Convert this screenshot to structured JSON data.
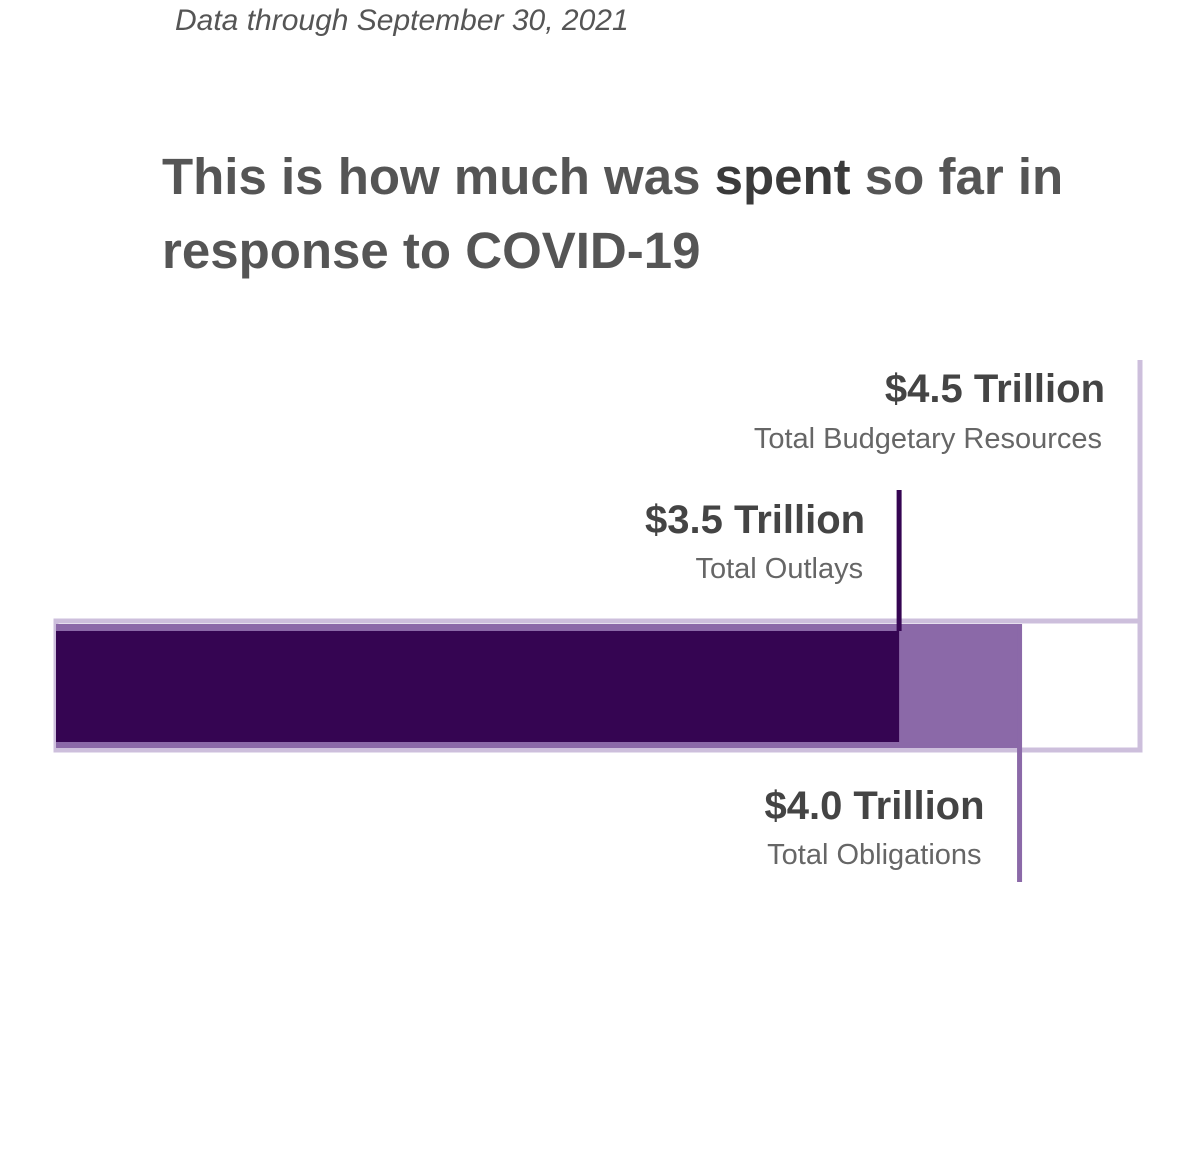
{
  "subtitle": "Data through September 30, 2021",
  "headline": {
    "before": "This is how much was ",
    "emphasis": "spent",
    "after": " so far in response to COVID-19"
  },
  "colors": {
    "budgetary_resources": "#cdbfdc",
    "obligations": "#8b69a8",
    "outlays": "#350552"
  },
  "chart_data": {
    "type": "bar",
    "orientation": "horizontal",
    "unit": "Trillion USD",
    "series": [
      {
        "key": "resources",
        "value": 4.5,
        "value_label": "$4.5 Trillion",
        "label": "Total Budgetary Resources"
      },
      {
        "key": "obligations",
        "value": 4.0,
        "value_label": "$4.0 Trillion",
        "label": "Total Obligations"
      },
      {
        "key": "outlays",
        "value": 3.5,
        "value_label": "$3.5 Trillion",
        "label": "Total Outlays"
      }
    ]
  }
}
